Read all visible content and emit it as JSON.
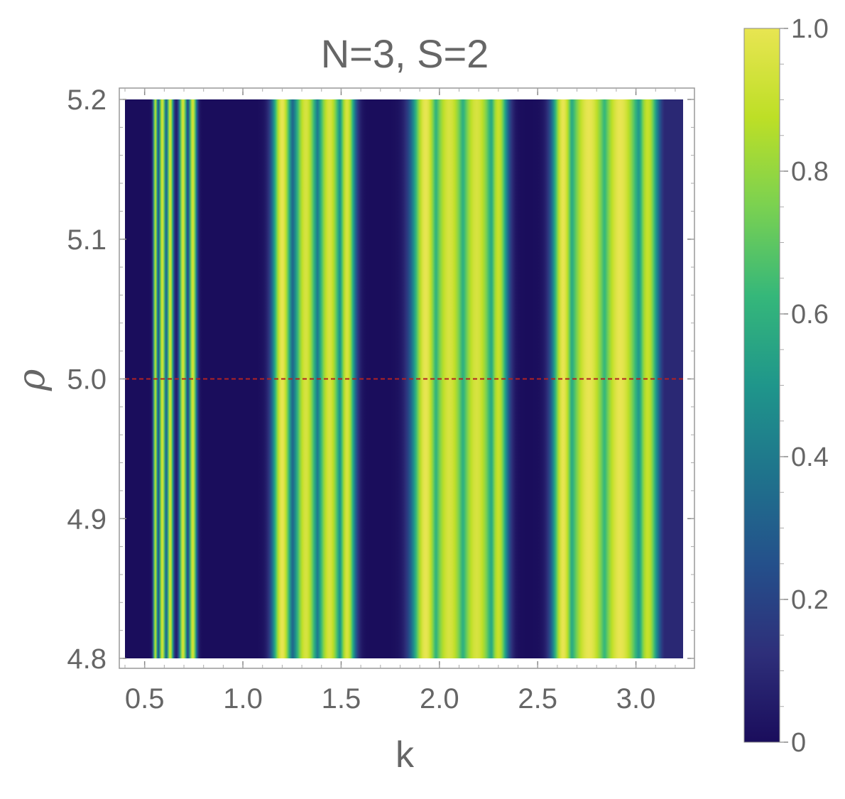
{
  "chart_data": {
    "type": "heatmap",
    "title": "N=3, S=2",
    "xlabel": "k",
    "ylabel": "ρ",
    "xlim": [
      0.4,
      3.24
    ],
    "ylim": [
      4.8,
      5.2
    ],
    "x_ticks": [
      0.5,
      1.0,
      1.5,
      2.0,
      2.5,
      3.0
    ],
    "x_tick_labels": [
      "0.5",
      "1.0",
      "1.5",
      "2.0",
      "2.5",
      "3.0"
    ],
    "y_ticks": [
      4.8,
      4.9,
      5.0,
      5.1,
      5.2
    ],
    "y_tick_labels": [
      "4.8",
      "4.9",
      "5.0",
      "5.1",
      "5.2"
    ],
    "colorbar": {
      "range": [
        0,
        1
      ],
      "ticks": [
        0,
        0.2,
        0.4,
        0.6,
        0.8,
        1.0
      ],
      "tick_labels": [
        "0",
        "0.2",
        "0.4",
        "0.6",
        "0.8",
        "1.0"
      ],
      "colormap": [
        "#1a0d5c",
        "#2e2f7a",
        "#24508b",
        "#1f738c",
        "#1f968b",
        "#35b77a",
        "#7ad151",
        "#bddf26",
        "#e8e552"
      ]
    },
    "reference_line": {
      "y": 5.0,
      "color": "#b22222",
      "style": "dashed"
    },
    "bands": [
      {
        "center": 0.555,
        "width": 0.008,
        "peak": 0.9
      },
      {
        "center": 0.59,
        "width": 0.012,
        "peak": 0.95
      },
      {
        "center": 0.63,
        "width": 0.012,
        "peak": 0.95
      },
      {
        "center": 0.695,
        "width": 0.014,
        "peak": 0.95
      },
      {
        "center": 0.745,
        "width": 0.014,
        "peak": 0.95
      },
      {
        "center": 1.2,
        "width": 0.035,
        "peak": 1.0
      },
      {
        "center": 1.32,
        "width": 0.045,
        "peak": 0.95
      },
      {
        "center": 1.44,
        "width": 0.045,
        "peak": 0.95
      },
      {
        "center": 1.53,
        "width": 0.03,
        "peak": 0.95
      },
      {
        "center": 1.93,
        "width": 0.05,
        "peak": 1.0
      },
      {
        "center": 2.05,
        "width": 0.07,
        "peak": 0.95
      },
      {
        "center": 2.19,
        "width": 0.07,
        "peak": 0.95
      },
      {
        "center": 2.3,
        "width": 0.035,
        "peak": 0.9
      },
      {
        "center": 2.63,
        "width": 0.04,
        "peak": 1.0
      },
      {
        "center": 2.76,
        "width": 0.08,
        "peak": 1.0
      },
      {
        "center": 2.92,
        "width": 0.08,
        "peak": 1.0
      },
      {
        "center": 3.06,
        "width": 0.04,
        "peak": 0.9
      }
    ],
    "background_value": 0.0,
    "right_edge_value": 0.1
  }
}
